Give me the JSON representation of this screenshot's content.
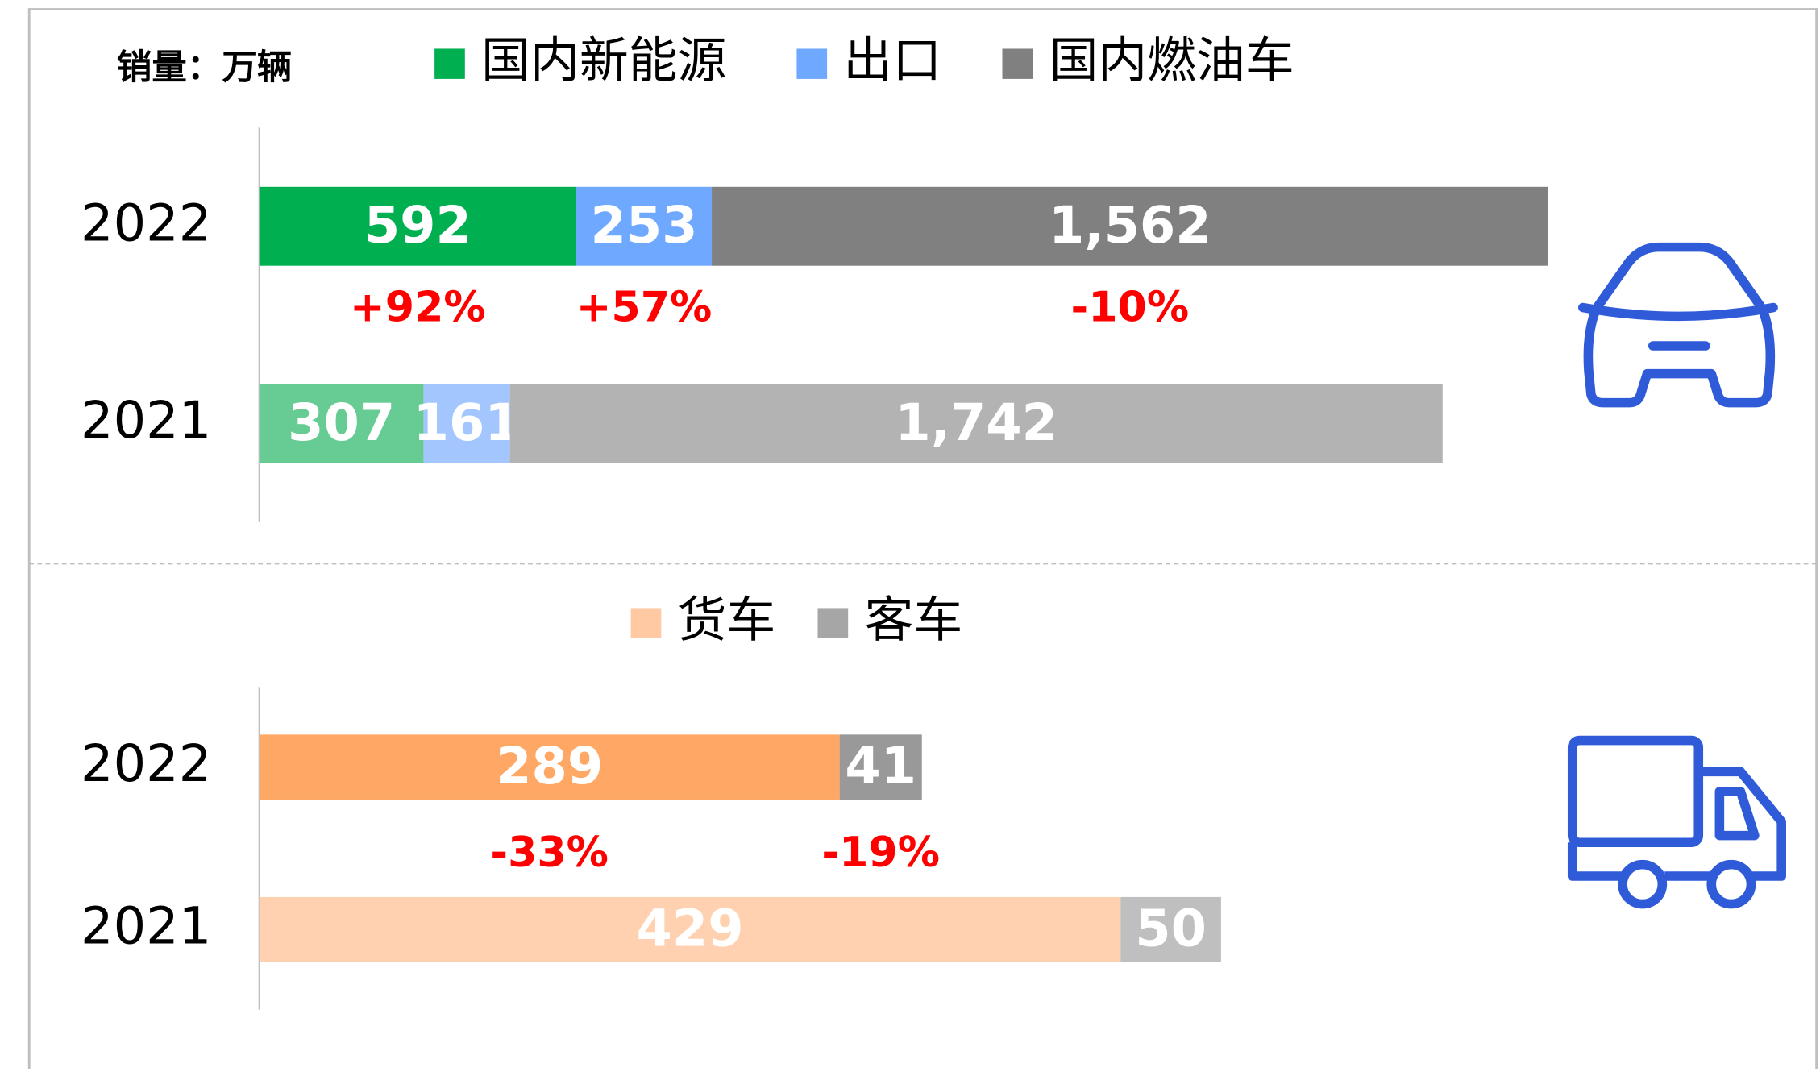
{
  "unit_label": "销量：万辆",
  "chart_data": [
    {
      "type": "stacked-barh",
      "categories": [
        "2022",
        "2021"
      ],
      "series": [
        {
          "name": "国内新能源",
          "color": "#00b050",
          "colors": [
            "#00b050",
            "#66cc94"
          ],
          "values": [
            592,
            307
          ]
        },
        {
          "name": "出口",
          "color": "#6fa8ff",
          "colors": [
            "#6fa8ff",
            "#a3c6ff"
          ],
          "values": [
            253,
            161
          ]
        },
        {
          "name": "国内燃油车",
          "color": "#808080",
          "colors": [
            "#808080",
            "#b3b3b3"
          ],
          "values": [
            1562,
            1742
          ]
        }
      ],
      "value_labels": [
        [
          "592",
          "307"
        ],
        [
          "253",
          "161"
        ],
        [
          "1,562",
          "1,742"
        ]
      ],
      "annotations": [
        "+92%",
        "+57%",
        "-10%"
      ],
      "xlim": [
        0,
        2400
      ]
    },
    {
      "type": "stacked-barh",
      "categories": [
        "2022",
        "2021"
      ],
      "series": [
        {
          "name": "货车",
          "color": "#ffc9a3",
          "colors": [
            "#ffa866",
            "#ffd1b0"
          ],
          "values": [
            289,
            429
          ]
        },
        {
          "name": "客车",
          "color": "#a6a6a6",
          "colors": [
            "#999999",
            "#bfbfbf"
          ],
          "values": [
            41,
            50
          ]
        }
      ],
      "annotations": [
        "-33%",
        "-19%"
      ],
      "xlim": [
        0,
        640
      ]
    }
  ]
}
